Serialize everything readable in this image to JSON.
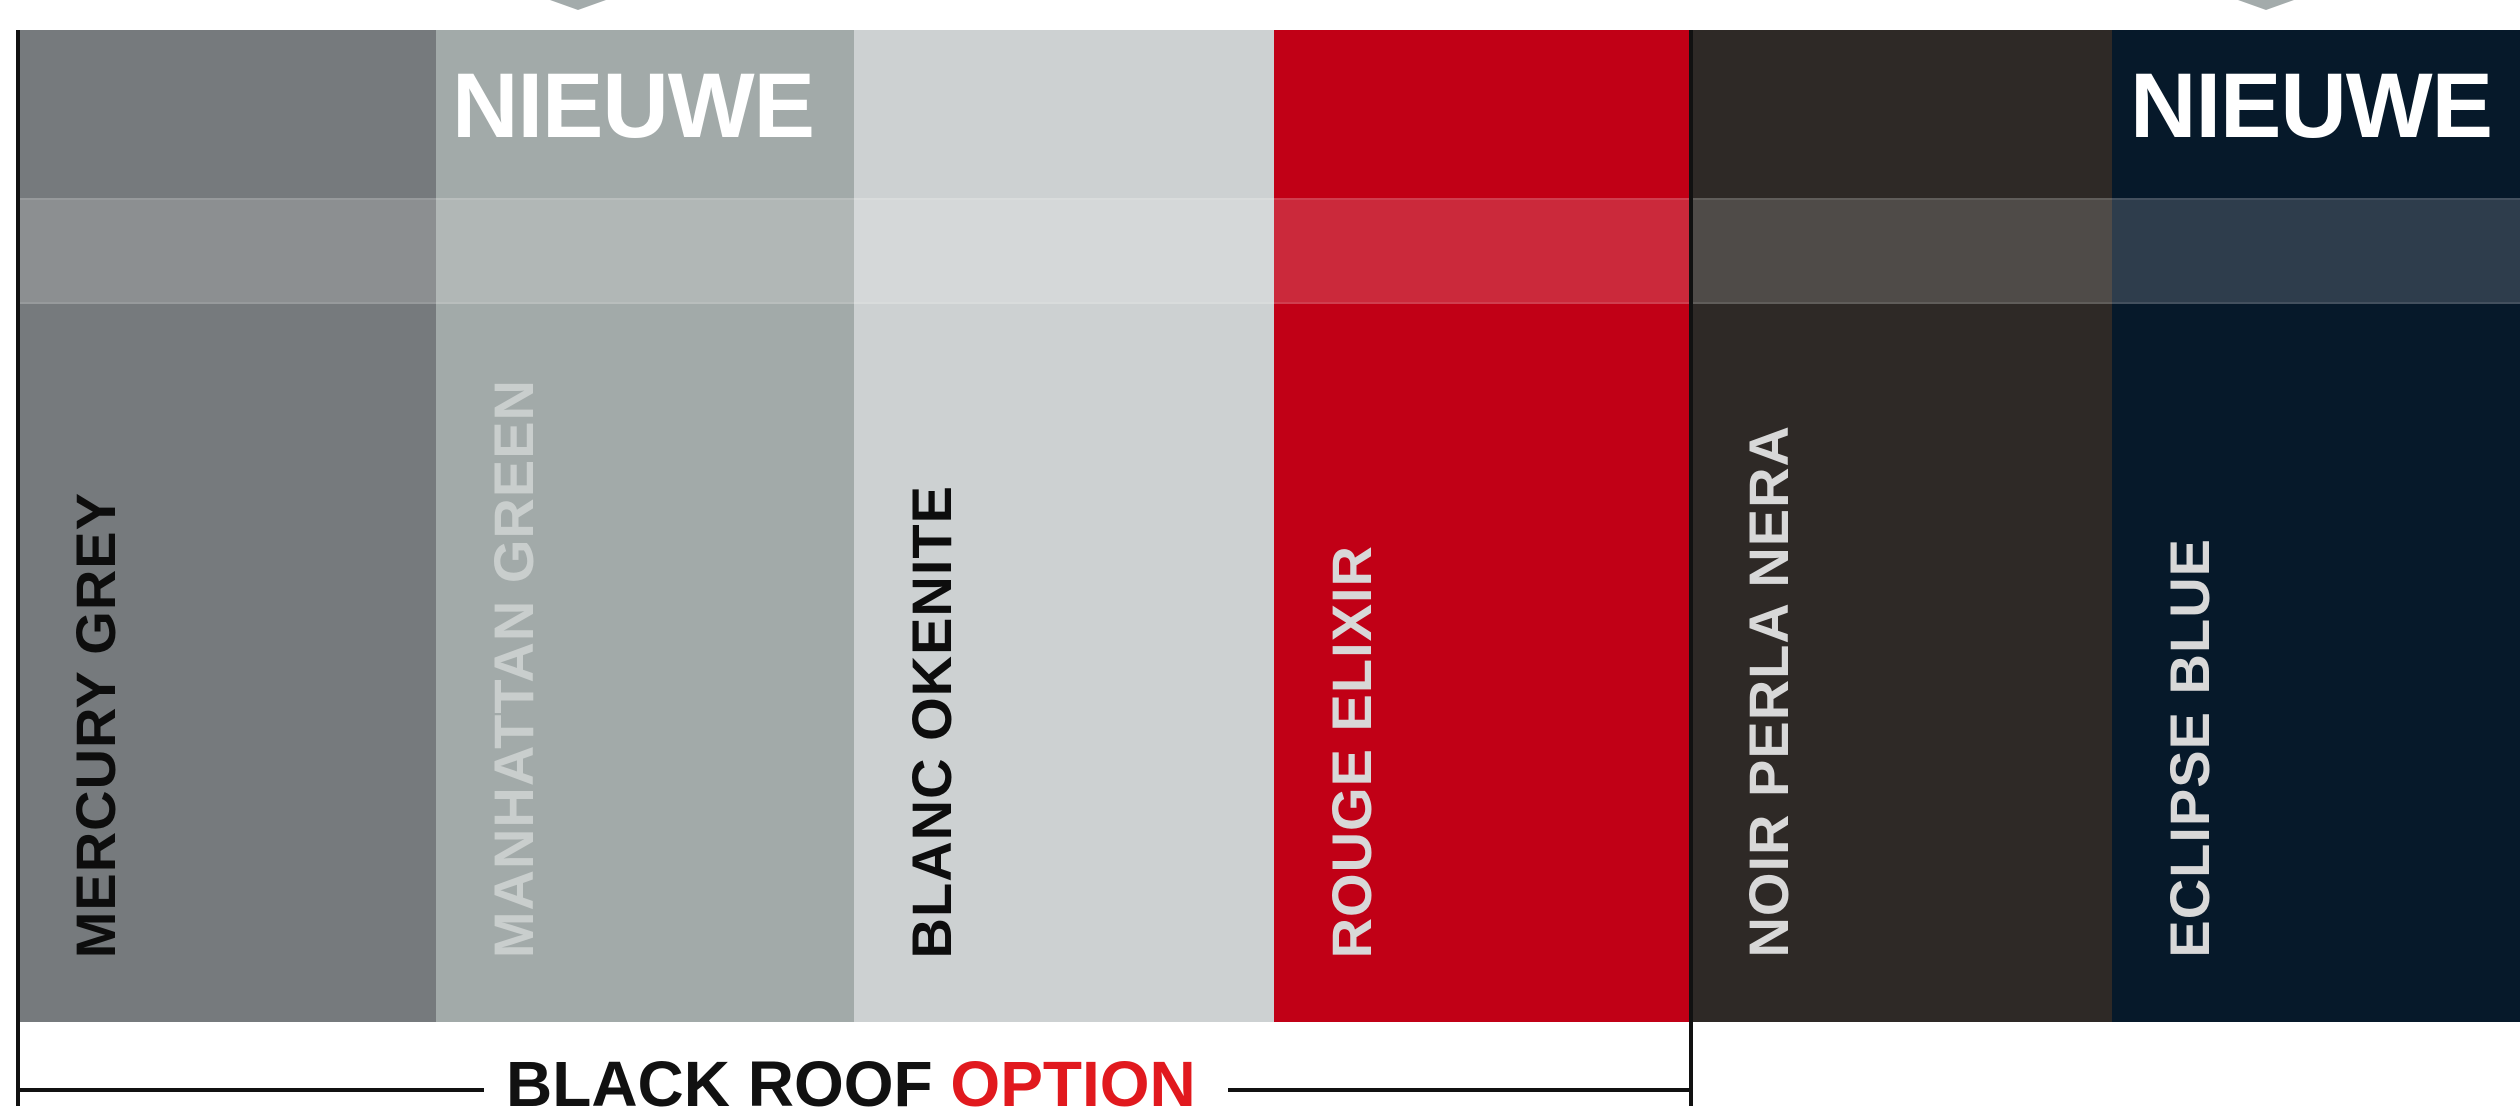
{
  "badge_text": "NIEUWE",
  "swatches": [
    {
      "name": "MERCURY GREY",
      "color": "#767a7d",
      "text_color": "#0d0d0d",
      "is_new": false
    },
    {
      "name": "MANHATTAN GREEN",
      "color": "#a2aaa9",
      "text_color": "#c9cecd",
      "is_new": true
    },
    {
      "name": "BLANC OKENITE",
      "color": "#cdd1d2",
      "text_color": "#0d0d0d",
      "is_new": false
    },
    {
      "name": "ROUGE ELIXIR",
      "color": "#c10016",
      "text_color": "#d8d8d8",
      "is_new": false
    },
    {
      "name": "NOIR PERLA NERA",
      "color": "#2e2926",
      "text_color": "#d8d8d8",
      "is_new": false
    },
    {
      "name": "ECLIPSE BLUE",
      "color": "#06192a",
      "text_color": "#d8d8d8",
      "is_new": true
    }
  ],
  "roof_option": {
    "prefix": "BLACK ROOF",
    "accent": "OPTION",
    "accent_color": "#e1191e"
  }
}
